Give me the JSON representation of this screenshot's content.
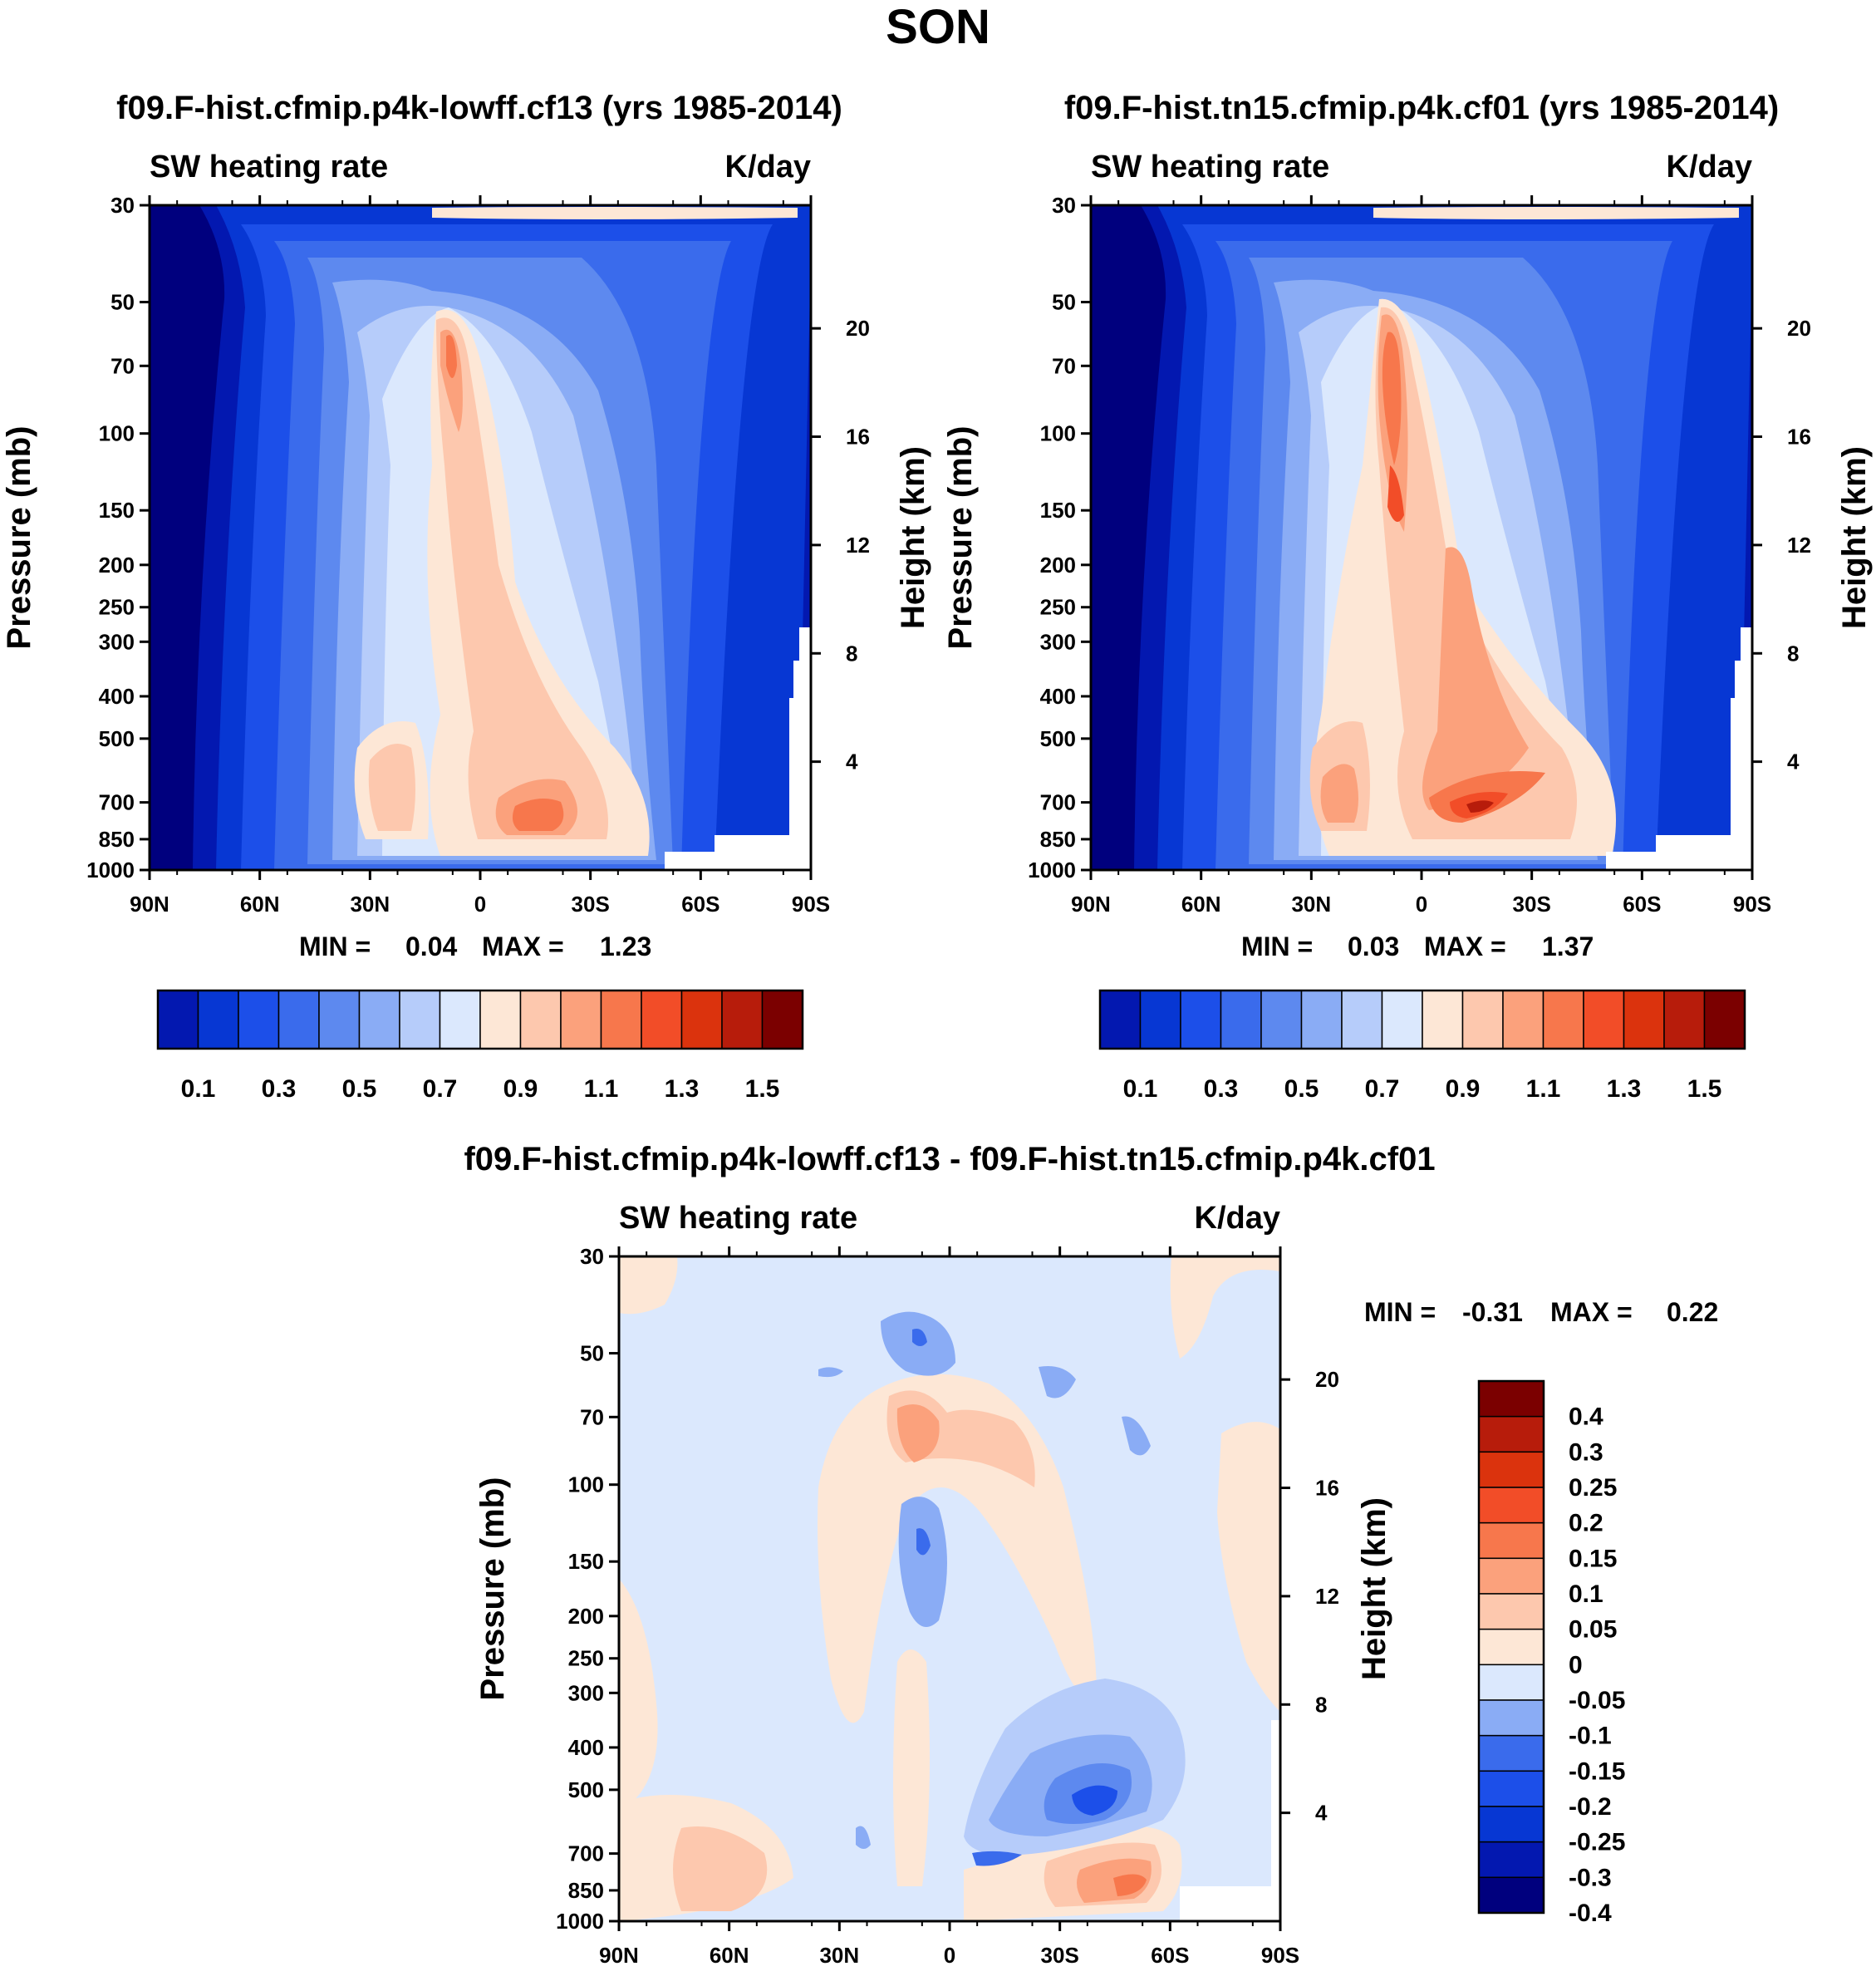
{
  "figure": {
    "title": "SON"
  },
  "colors": {
    "abs_palette": [
      "#00007e",
      "#0318b0",
      "#0737d3",
      "#1c4fe9",
      "#3a6bec",
      "#5d89ef",
      "#8aacf5",
      "#b6ccfa",
      "#dbe8fd",
      "#fde7d6",
      "#fdc8ae",
      "#fba17c",
      "#f7774c",
      "#f24d28",
      "#db330d",
      "#b71c0b",
      "#7b0000"
    ],
    "diff_palette": [
      "#00007e",
      "#0318b0",
      "#0737d3",
      "#1c4fe9",
      "#3a6bec",
      "#8aacf5",
      "#dbe8fd",
      "#fde7d6",
      "#fdc8ae",
      "#fba17c",
      "#f7774c",
      "#f24d28",
      "#db330d",
      "#b71c0b",
      "#7b0000"
    ]
  },
  "chart_data": [
    {
      "type": "heatmap",
      "title": "f09.F-hist.cfmip.p4k-lowff.cf13 (yrs 1985-2014)",
      "left_label": "SW heating rate",
      "right_label": "K/day",
      "xlabel": "",
      "ylabel": "Pressure (mb)",
      "y2label": "Height (km)",
      "x_ticks": [
        "90N",
        "60N",
        "30N",
        "0",
        "30S",
        "60S",
        "90S"
      ],
      "y_ticks": [
        30,
        50,
        70,
        100,
        150,
        200,
        250,
        300,
        400,
        500,
        700,
        850,
        1000
      ],
      "y2_ticks": [
        20,
        16,
        12,
        8,
        4
      ],
      "ylim": [
        1000,
        30
      ],
      "min_label": "MIN =",
      "min": "0.04",
      "max_label": "MAX =",
      "max": "1.23",
      "colorbar_labels": [
        "0.1",
        "0.3",
        "0.5",
        "0.7",
        "0.9",
        "1.1",
        "1.3",
        "1.5"
      ]
    },
    {
      "type": "heatmap",
      "title": "f09.F-hist.tn15.cfmip.p4k.cf01 (yrs 1985-2014)",
      "left_label": "SW heating rate",
      "right_label": "K/day",
      "xlabel": "",
      "ylabel": "Pressure (mb)",
      "y2label": "Height (km)",
      "x_ticks": [
        "90N",
        "60N",
        "30N",
        "0",
        "30S",
        "60S",
        "90S"
      ],
      "y_ticks": [
        30,
        50,
        70,
        100,
        150,
        200,
        250,
        300,
        400,
        500,
        700,
        850,
        1000
      ],
      "y2_ticks": [
        20,
        16,
        12,
        8,
        4
      ],
      "ylim": [
        1000,
        30
      ],
      "min_label": "MIN =",
      "min": "0.03",
      "max_label": "MAX =",
      "max": "1.37",
      "colorbar_labels": [
        "0.1",
        "0.3",
        "0.5",
        "0.7",
        "0.9",
        "1.1",
        "1.3",
        "1.5"
      ]
    },
    {
      "type": "heatmap",
      "title": "f09.F-hist.cfmip.p4k-lowff.cf13 - f09.F-hist.tn15.cfmip.p4k.cf01",
      "left_label": "SW heating rate",
      "right_label": "K/day",
      "xlabel": "",
      "ylabel": "Pressure (mb)",
      "y2label": "Height (km)",
      "x_ticks": [
        "90N",
        "60N",
        "30N",
        "0",
        "30S",
        "60S",
        "90S"
      ],
      "y_ticks": [
        30,
        50,
        70,
        100,
        150,
        200,
        250,
        300,
        400,
        500,
        700,
        850,
        1000
      ],
      "y2_ticks": [
        20,
        16,
        12,
        8,
        4
      ],
      "ylim": [
        1000,
        30
      ],
      "min_label": "MIN =",
      "min": "-0.31",
      "max_label": "MAX =",
      "max": "0.22",
      "colorbar_labels": [
        "0.4",
        "0.3",
        "0.25",
        "0.2",
        "0.15",
        "0.1",
        "0.05",
        "0",
        "-0.05",
        "-0.1",
        "-0.15",
        "-0.2",
        "-0.25",
        "-0.3",
        "-0.4"
      ]
    }
  ]
}
